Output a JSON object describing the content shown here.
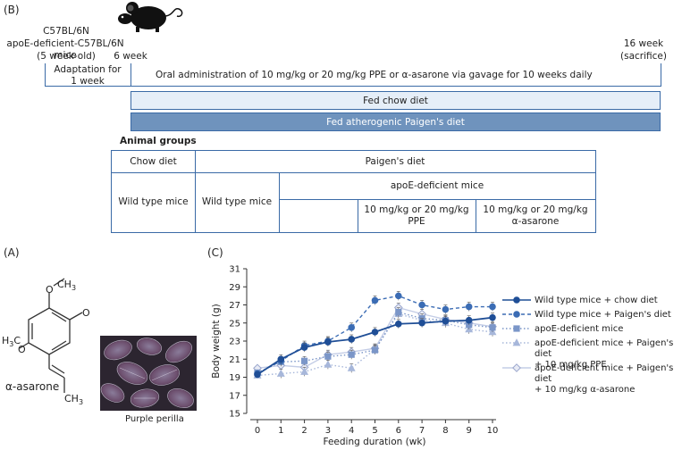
{
  "panel_b": {
    "letter": "(B)",
    "strain_line1": "C57BL/6N",
    "strain_line2": "apoE-deficient-C57BL/6N mice",
    "age_start": "(5 week-old)",
    "week6": "6 week",
    "week16": "16 week",
    "sacrifice": "(sacrifice)",
    "adaptation_line1": "Adaptation for",
    "adaptation_line2": "1 week",
    "oral_admin": "Oral administration of 10 mg/kg or 20 mg/kg PPE or α-asarone via gavage for 10 weeks daily",
    "chow_bar": "Fed chow diet",
    "paigen_bar": "Fed atherogenic Paigen's diet",
    "groups_title": "Animal groups",
    "table": {
      "chow_diet": "Chow diet",
      "paigens_diet": "Paigen's diet",
      "wild_type_1": "Wild type mice",
      "wild_type_2": "Wild type mice",
      "apoe": "apoE-deficient mice",
      "ppe_line1": "10 mg/kg or 20 mg/kg",
      "ppe_line2": "PPE",
      "asarone_line1": "10 mg/kg or 20 mg/kg",
      "asarone_line2": "α-asarone"
    }
  },
  "panel_a": {
    "letter": "(A)",
    "compound_name": "α-asarone",
    "ome_label": "O",
    "ch3_label": "CH",
    "ch3_sub": "3",
    "h3c_label": "H",
    "h3c_sub": "3",
    "h3c_c": "C",
    "photo_caption": "Purple perilla"
  },
  "panel_c": {
    "letter": "(C)"
  },
  "chart_data": {
    "type": "line",
    "ylabel": "Body weight (g)",
    "xlabel": "Feeding duration (wk)",
    "x": [
      0,
      1,
      2,
      3,
      4,
      5,
      6,
      7,
      8,
      9,
      10
    ],
    "xticks": [
      "0",
      "1",
      "2",
      "3",
      "4",
      "5",
      "6",
      "7",
      "8",
      "9",
      "10"
    ],
    "ylim": [
      15,
      31
    ],
    "yticks": [
      "15",
      "17",
      "19",
      "21",
      "23",
      "25",
      "27",
      "29",
      "31"
    ],
    "series": [
      {
        "name": "Wild type mice + chow diet",
        "values": [
          19.3,
          21.0,
          22.3,
          22.9,
          23.2,
          24.0,
          24.9,
          25.0,
          25.2,
          25.3,
          25.6
        ],
        "color": "#1f4e96",
        "style": "solid",
        "marker": "circle"
      },
      {
        "name": "Wild type mice + Paigen's diet",
        "values": [
          19.4,
          20.8,
          22.5,
          23.0,
          24.5,
          27.5,
          28.0,
          27.0,
          26.5,
          26.8,
          26.8
        ],
        "color": "#3b6cb4",
        "style": "dashed",
        "marker": "circle"
      },
      {
        "name": "apoE-deficient mice",
        "values": [
          19.5,
          20.7,
          20.8,
          21.3,
          21.5,
          22.0,
          26.2,
          25.5,
          25.3,
          24.8,
          24.5
        ],
        "color": "#7b96c8",
        "style": "dotted",
        "marker": "square"
      },
      {
        "name_line1": "apoE-deficient mice + Paigen's diet",
        "name_line2": "+ 10 mg/kg PPE",
        "values": [
          19.2,
          19.4,
          19.6,
          20.4,
          20.0,
          22.1,
          26.0,
          25.3,
          25.0,
          24.3,
          24.0
        ],
        "color": "#a7b7da",
        "style": "dotted",
        "marker": "triangle"
      },
      {
        "name_line1": "apoE-deficient mice + Paigen's diet",
        "name_line2": "+ 10 mg/kg α-asarone",
        "values": [
          20.0,
          20.3,
          20.1,
          21.5,
          21.8,
          22.2,
          26.7,
          26.0,
          25.4,
          25.0,
          24.6
        ],
        "color": "#c4cde6",
        "style": "solid",
        "marker": "diamond"
      }
    ],
    "legend_position": "right"
  }
}
